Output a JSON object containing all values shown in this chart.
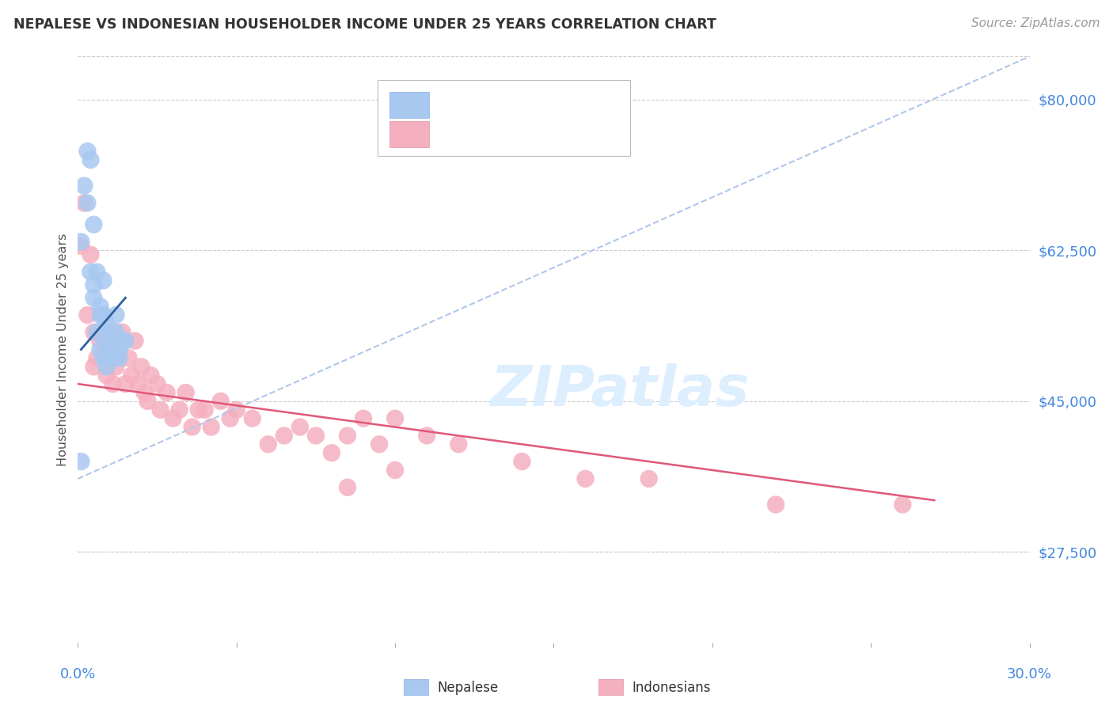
{
  "title": "NEPALESE VS INDONESIAN HOUSEHOLDER INCOME UNDER 25 YEARS CORRELATION CHART",
  "source": "Source: ZipAtlas.com",
  "ylabel": "Householder Income Under 25 years",
  "ytick_labels": [
    "$27,500",
    "$45,000",
    "$62,500",
    "$80,000"
  ],
  "ytick_values": [
    27500,
    45000,
    62500,
    80000
  ],
  "xlim": [
    0.0,
    0.3
  ],
  "ylim": [
    17000,
    85000
  ],
  "nep_color": "#a8c8f0",
  "ind_color": "#f5b0c0",
  "nep_line_color": "#3060a0",
  "ind_line_color": "#e05878",
  "dash_color": "#b0c8e8",
  "watermark_color": "#ddeeff",
  "nep_x": [
    0.001,
    0.002,
    0.003,
    0.003,
    0.004,
    0.004,
    0.005,
    0.005,
    0.005,
    0.006,
    0.006,
    0.007,
    0.007,
    0.007,
    0.008,
    0.008,
    0.008,
    0.009,
    0.009,
    0.009,
    0.01,
    0.01,
    0.011,
    0.011,
    0.012,
    0.012,
    0.013,
    0.013,
    0.014,
    0.015,
    0.001
  ],
  "nep_y": [
    63500,
    70000,
    68000,
    74000,
    73000,
    60000,
    65500,
    57000,
    58500,
    60000,
    53000,
    55000,
    56000,
    51000,
    59000,
    55000,
    50000,
    52000,
    54000,
    49000,
    51000,
    53000,
    50000,
    52000,
    53000,
    55000,
    51000,
    50000,
    52000,
    52000,
    38000
  ],
  "ind_x": [
    0.001,
    0.002,
    0.003,
    0.004,
    0.005,
    0.005,
    0.006,
    0.007,
    0.008,
    0.009,
    0.01,
    0.011,
    0.012,
    0.013,
    0.014,
    0.015,
    0.016,
    0.017,
    0.018,
    0.019,
    0.02,
    0.021,
    0.022,
    0.023,
    0.025,
    0.026,
    0.028,
    0.03,
    0.032,
    0.034,
    0.036,
    0.038,
    0.04,
    0.042,
    0.045,
    0.048,
    0.05,
    0.055,
    0.06,
    0.065,
    0.07,
    0.075,
    0.08,
    0.085,
    0.09,
    0.095,
    0.1,
    0.11,
    0.12,
    0.14,
    0.16,
    0.18,
    0.22,
    0.26,
    0.1,
    0.085
  ],
  "ind_y": [
    63000,
    68000,
    55000,
    62000,
    49000,
    53000,
    50000,
    52000,
    55000,
    48000,
    50000,
    47000,
    49000,
    50000,
    53000,
    47000,
    50000,
    48000,
    52000,
    47000,
    49000,
    46000,
    45000,
    48000,
    47000,
    44000,
    46000,
    43000,
    44000,
    46000,
    42000,
    44000,
    44000,
    42000,
    45000,
    43000,
    44000,
    43000,
    40000,
    41000,
    42000,
    41000,
    39000,
    41000,
    43000,
    40000,
    43000,
    41000,
    40000,
    38000,
    36000,
    36000,
    33000,
    33000,
    37000,
    35000
  ]
}
